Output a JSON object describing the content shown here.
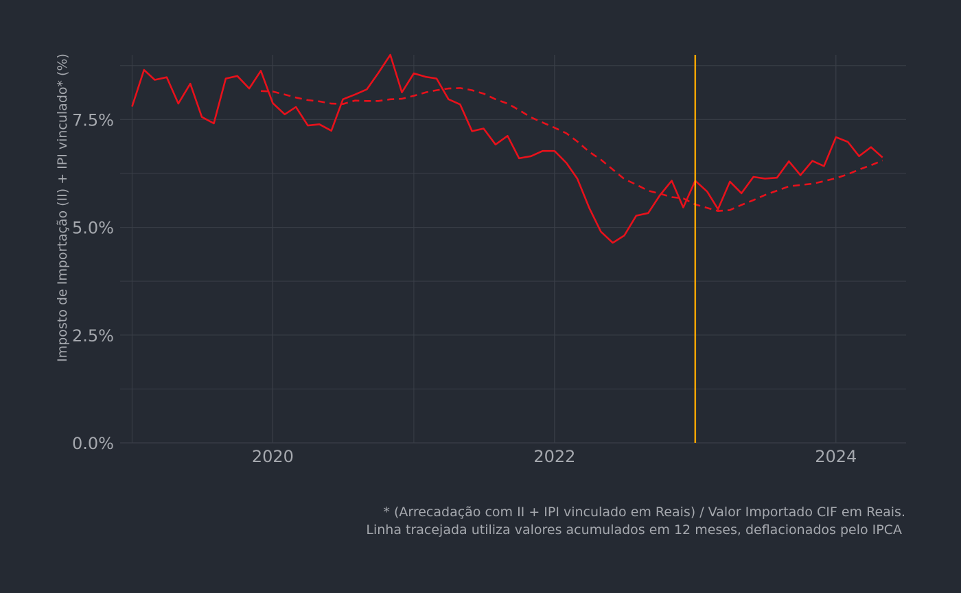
{
  "chart_data": {
    "type": "line",
    "ylabel": "Imposto de Importação (II) + IPI vinculado* (%)",
    "xlabel": "",
    "ylim": [
      0,
      0.09
    ],
    "xlim": [
      "2018-12-01",
      "2024-07-01"
    ],
    "y_ticks": [
      0,
      0.025,
      0.05,
      0.075
    ],
    "y_tick_labels": [
      "0.0%",
      "2.5%",
      "5.0%",
      "7.5%"
    ],
    "x_ticks": [
      "2020-01-01",
      "2022-01-01",
      "2024-01-01"
    ],
    "x_tick_labels": [
      "2020",
      "2022",
      "2024"
    ],
    "grid": true,
    "vertical_line": {
      "date": "2023-01-01",
      "color": "#ffa500"
    },
    "caption": [
      "* (Arrecadação com II + IPI vinculado em Reais) / Valor Importado CIF em Reais.",
      "Linha tracejada utiliza valores acumulados em 12 meses, deflacionados pelo IPCA"
    ],
    "series": [
      {
        "style": "solid",
        "color": "#e8111b",
        "x": [
          "2019-01",
          "2019-02",
          "2019-03",
          "2019-04",
          "2019-05",
          "2019-06",
          "2019-07",
          "2019-08",
          "2019-09",
          "2019-10",
          "2019-11",
          "2019-12",
          "2020-01",
          "2020-02",
          "2020-03",
          "2020-04",
          "2020-05",
          "2020-06",
          "2020-07",
          "2020-08",
          "2020-09",
          "2020-10",
          "2020-11",
          "2020-12",
          "2021-01",
          "2021-02",
          "2021-03",
          "2021-04",
          "2021-05",
          "2021-06",
          "2021-07",
          "2021-08",
          "2021-09",
          "2021-10",
          "2021-11",
          "2021-12",
          "2022-01",
          "2022-02",
          "2022-03",
          "2022-04",
          "2022-05",
          "2022-06",
          "2022-07",
          "2022-08",
          "2022-09",
          "2022-10",
          "2022-11",
          "2022-12",
          "2023-01",
          "2023-02",
          "2023-03",
          "2023-04",
          "2023-05",
          "2023-06",
          "2023-07",
          "2023-08",
          "2023-09",
          "2023-10",
          "2023-11",
          "2023-12",
          "2024-01",
          "2024-02",
          "2024-03",
          "2024-04",
          "2024-05"
        ],
        "values": [
          0.078,
          0.0865,
          0.0842,
          0.0848,
          0.0787,
          0.0833,
          0.0756,
          0.0741,
          0.0845,
          0.0851,
          0.0822,
          0.0863,
          0.0788,
          0.0762,
          0.0779,
          0.0736,
          0.0739,
          0.0724,
          0.0797,
          0.0808,
          0.082,
          0.0858,
          0.09,
          0.0813,
          0.0857,
          0.0849,
          0.0845,
          0.0797,
          0.0785,
          0.0723,
          0.0729,
          0.0692,
          0.0712,
          0.066,
          0.0665,
          0.0677,
          0.0677,
          0.0649,
          0.0613,
          0.0545,
          0.049,
          0.0464,
          0.0481,
          0.0527,
          0.0533,
          0.0574,
          0.0608,
          0.0546,
          0.0608,
          0.0583,
          0.0542,
          0.0606,
          0.0579,
          0.0617,
          0.0613,
          0.0615,
          0.0653,
          0.0621,
          0.0654,
          0.0642,
          0.0709,
          0.0698,
          0.0665,
          0.0686,
          0.0662
        ]
      },
      {
        "style": "dashed",
        "color": "#e8111b",
        "x": [
          "2019-12",
          "2020-01",
          "2020-02",
          "2020-03",
          "2020-04",
          "2020-05",
          "2020-06",
          "2020-07",
          "2020-08",
          "2020-09",
          "2020-10",
          "2020-11",
          "2020-12",
          "2021-01",
          "2021-02",
          "2021-03",
          "2021-04",
          "2021-05",
          "2021-06",
          "2021-07",
          "2021-08",
          "2021-09",
          "2021-10",
          "2021-11",
          "2021-12",
          "2022-01",
          "2022-02",
          "2022-03",
          "2022-04",
          "2022-05",
          "2022-06",
          "2022-07",
          "2022-08",
          "2022-09",
          "2022-10",
          "2022-11",
          "2022-12",
          "2023-01",
          "2023-02",
          "2023-03",
          "2023-04",
          "2023-05",
          "2023-06",
          "2023-07",
          "2023-08",
          "2023-09",
          "2023-10",
          "2023-11",
          "2023-12",
          "2024-01",
          "2024-02",
          "2024-03",
          "2024-04",
          "2024-05"
        ],
        "values": [
          0.0816,
          0.0815,
          0.0808,
          0.0801,
          0.0795,
          0.0792,
          0.0787,
          0.0786,
          0.0794,
          0.0793,
          0.0793,
          0.0797,
          0.0798,
          0.0805,
          0.0813,
          0.0818,
          0.0822,
          0.0823,
          0.0818,
          0.081,
          0.0797,
          0.0787,
          0.0772,
          0.0755,
          0.0743,
          0.0731,
          0.0718,
          0.0699,
          0.0675,
          0.0657,
          0.0634,
          0.0612,
          0.0599,
          0.0585,
          0.0578,
          0.057,
          0.0567,
          0.0553,
          0.0545,
          0.0538,
          0.054,
          0.0552,
          0.0563,
          0.0575,
          0.0585,
          0.0595,
          0.0598,
          0.0601,
          0.0607,
          0.0614,
          0.0623,
          0.0634,
          0.0644,
          0.0655
        ]
      }
    ]
  }
}
